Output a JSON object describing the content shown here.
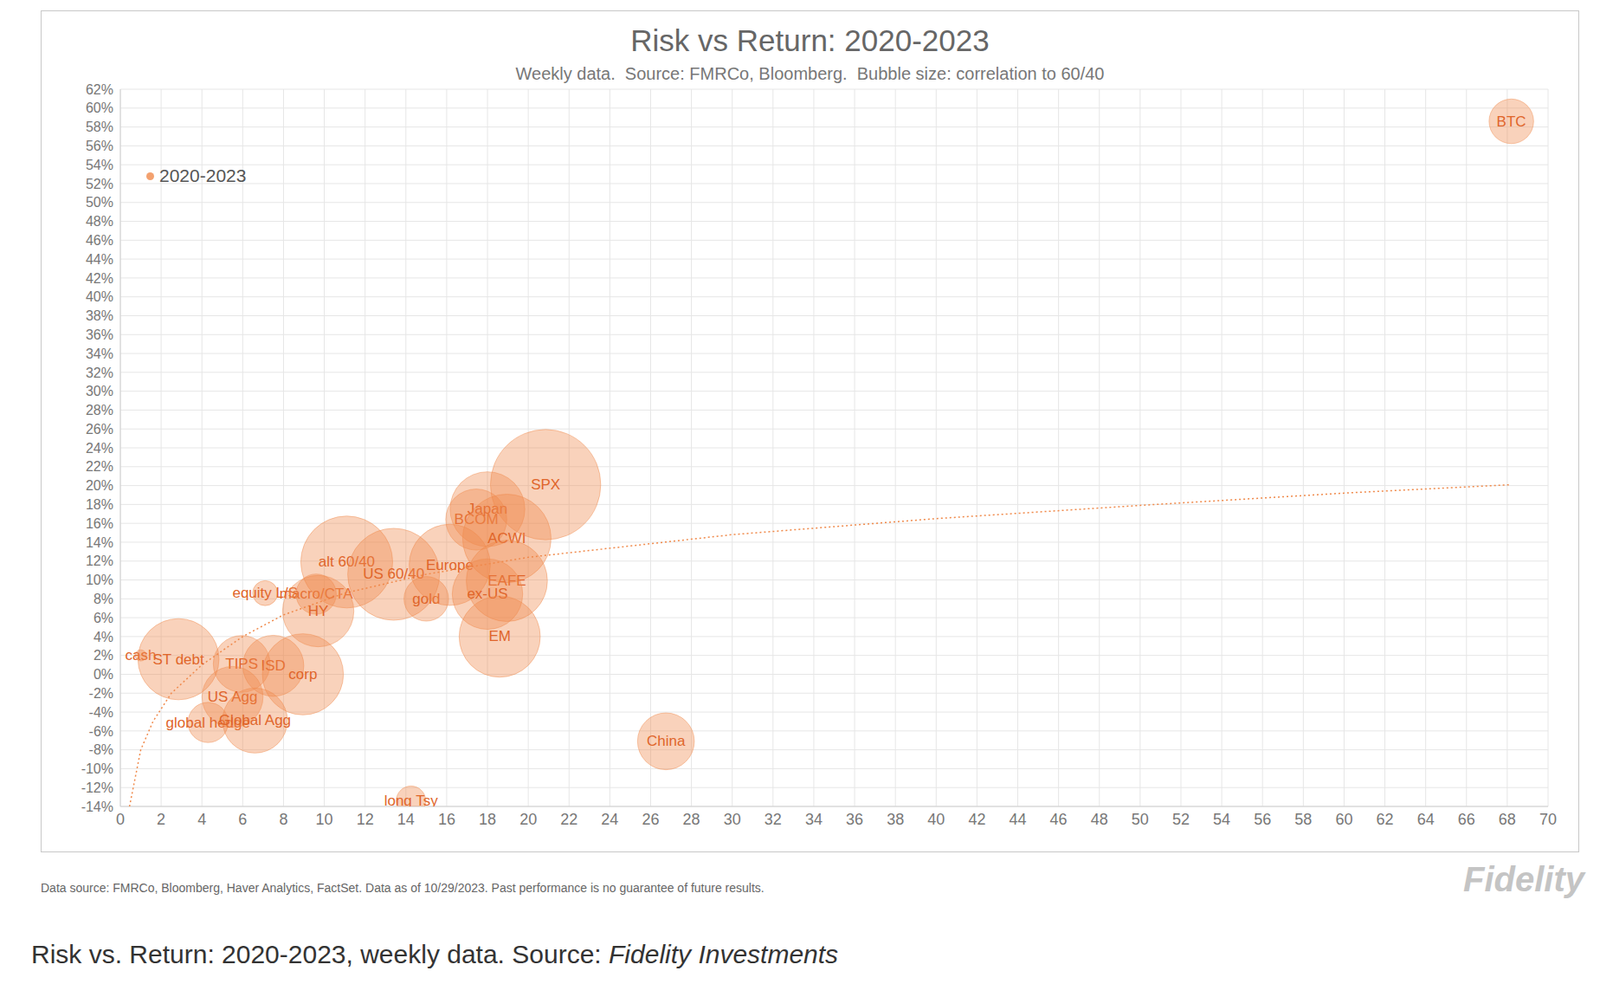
{
  "chart_data": {
    "type": "scatter",
    "title": "Risk vs Return: 2020-2023",
    "subtitle": "Weekly data.  Source: FMRCo, Bloomberg.  Bubble size: correlation to 60/40",
    "xlim": [
      0,
      70
    ],
    "xticks": [
      0,
      2,
      4,
      6,
      8,
      10,
      12,
      14,
      16,
      18,
      20,
      22,
      24,
      26,
      28,
      30,
      32,
      34,
      36,
      38,
      40,
      42,
      44,
      46,
      48,
      50,
      52,
      54,
      56,
      58,
      60,
      62,
      64,
      66,
      68,
      70
    ],
    "ylim": [
      -14,
      62
    ],
    "yticks": [
      {
        "value": -14,
        "label": "-14%"
      },
      {
        "value": -12,
        "label": "-12%"
      },
      {
        "value": -10,
        "label": "-10%"
      },
      {
        "value": -8,
        "label": "-8%"
      },
      {
        "value": -6,
        "label": "-6%"
      },
      {
        "value": -4,
        "label": "-4%"
      },
      {
        "value": -2,
        "label": "-2%"
      },
      {
        "value": 0,
        "label": "0%"
      },
      {
        "value": 2,
        "label": "2%"
      },
      {
        "value": 4,
        "label": "4%"
      },
      {
        "value": 6,
        "label": "6%"
      },
      {
        "value": 8,
        "label": "8%"
      },
      {
        "value": 10,
        "label": "10%"
      },
      {
        "value": 12,
        "label": "12%"
      },
      {
        "value": 14,
        "label": "14%"
      },
      {
        "value": 16,
        "label": "16%"
      },
      {
        "value": 18,
        "label": "18%"
      },
      {
        "value": 20,
        "label": "20%"
      },
      {
        "value": 22,
        "label": "22%"
      },
      {
        "value": 24,
        "label": "24%"
      },
      {
        "value": 26,
        "label": "26%"
      },
      {
        "value": 28,
        "label": "28%"
      },
      {
        "value": 30,
        "label": "30%"
      },
      {
        "value": 32,
        "label": "32%"
      },
      {
        "value": 34,
        "label": "34%"
      },
      {
        "value": 36,
        "label": "36%"
      },
      {
        "value": 38,
        "label": "38%"
      },
      {
        "value": 40,
        "label": "40%"
      },
      {
        "value": 42,
        "label": "42%"
      },
      {
        "value": 44,
        "label": "44%"
      },
      {
        "value": 46,
        "label": "46%"
      },
      {
        "value": 48,
        "label": "48%"
      },
      {
        "value": 50,
        "label": "50%"
      },
      {
        "value": 52,
        "label": "52%"
      },
      {
        "value": 54,
        "label": "54%"
      },
      {
        "value": 56,
        "label": "56%"
      },
      {
        "value": 58,
        "label": "58%"
      },
      {
        "value": 60,
        "label": "60%"
      },
      {
        "value": 62,
        "label": "62%"
      }
    ],
    "grid": true,
    "legend": "upper left",
    "series": [
      {
        "name": "2020-2023",
        "color": "#f08a4b",
        "marker": "circle",
        "labels": [
          "cash",
          "ST debt",
          "TIPS",
          "ISD",
          "corp",
          "US Agg",
          "global hedge",
          "Global Agg",
          "long Tsy",
          "equity L/S",
          "macro/CTA",
          "HY",
          "alt 60/40",
          "US 60/40",
          "gold",
          "Europe",
          "BCOM",
          "Japan",
          "ACWI",
          "EAFE",
          "ex-US",
          "EM",
          "SPX",
          "China",
          "BTC"
        ],
        "x": [
          1.0,
          2.85,
          5.95,
          7.5,
          8.95,
          5.5,
          4.3,
          6.6,
          14.25,
          7.1,
          9.6,
          9.7,
          11.1,
          13.4,
          15.0,
          16.15,
          17.45,
          18.0,
          18.95,
          18.95,
          18.0,
          18.6,
          20.85,
          26.75,
          68.2
        ],
        "y": [
          2.0,
          1.6,
          1.1,
          0.9,
          0.0,
          -2.4,
          -5.1,
          -4.9,
          -13.4,
          8.6,
          8.5,
          6.7,
          11.9,
          10.6,
          8.0,
          11.6,
          16.4,
          17.5,
          14.4,
          9.9,
          8.5,
          4.0,
          20.1,
          -7.1,
          58.6
        ],
        "size": [
          0.01,
          0.53,
          0.26,
          0.3,
          0.53,
          0.3,
          0.13,
          0.34,
          0.07,
          0.05,
          0.13,
          0.41,
          0.68,
          0.68,
          0.16,
          0.53,
          0.3,
          0.45,
          0.63,
          0.53,
          0.4,
          0.53,
          0.98,
          0.26,
          0.16
        ]
      }
    ],
    "trendline": {
      "color": "#f08a4b",
      "line_style": "dotted",
      "x": [
        0.45,
        1,
        1.6,
        2.5,
        4,
        6,
        8,
        11,
        15,
        20,
        30,
        40,
        50,
        60,
        68.2
      ],
      "y": [
        -14,
        -8,
        -5,
        -2,
        1,
        4,
        6.3,
        8.6,
        10.6,
        12.4,
        14.8,
        16.5,
        17.9,
        19.2,
        20.1
      ]
    },
    "footnote": "Data source: FMRCo, Bloomberg, Haver Analytics, FactSet. Data as of 10/29/2023. Past performance is no guarantee of future results.",
    "logo": "Fidelity",
    "caption": {
      "text": "Risk vs. Return: 2020-2023, weekly data. Source:",
      "source": "Fidelity Investments"
    }
  }
}
